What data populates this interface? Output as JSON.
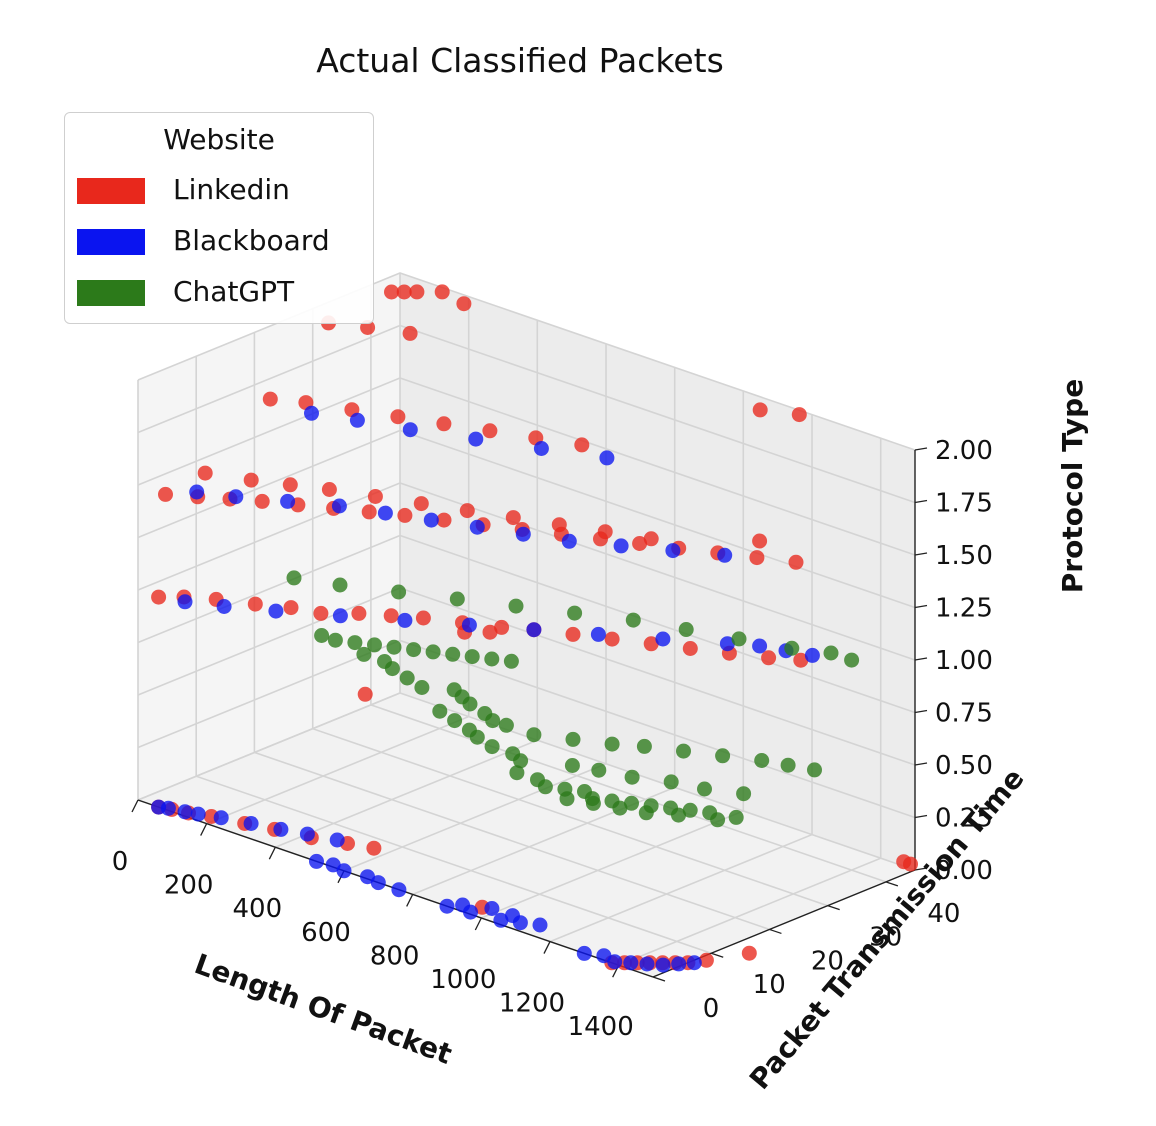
{
  "chart_data": {
    "type": "scatter",
    "projection": "3d",
    "title": "Actual Classified Packets",
    "xlabel": "Length Of Packet",
    "ylabel": "Packet Transmission Time",
    "zlabel": "Protocol Type",
    "xticks": [
      "0",
      "200",
      "400",
      "600",
      "800",
      "1000",
      "1200",
      "1400"
    ],
    "yticks": [
      "0",
      "10",
      "20",
      "30",
      "40"
    ],
    "zticks": [
      "0.00",
      "0.25",
      "0.50",
      "0.75",
      "1.00",
      "1.25",
      "1.50",
      "1.75",
      "2.00"
    ],
    "xlim": [
      0,
      1500
    ],
    "ylim": [
      0,
      45
    ],
    "zlim": [
      0,
      2
    ],
    "grid": true,
    "legend": {
      "title": "Website",
      "location": "upper-left",
      "entries": [
        "Linkedin",
        "Blackboard",
        "ChatGPT"
      ]
    },
    "series": [
      {
        "name": "Linkedin",
        "color": "#e8281c",
        "points": [
          [
            60,
            0,
            0
          ],
          [
            90,
            0.5,
            0
          ],
          [
            130,
            1,
            0
          ],
          [
            180,
            2,
            0
          ],
          [
            260,
            3,
            0
          ],
          [
            330,
            4,
            0
          ],
          [
            420,
            5,
            0
          ],
          [
            500,
            6.5,
            0
          ],
          [
            560,
            7.5,
            0
          ],
          [
            1380,
            0,
            0
          ],
          [
            1400,
            1,
            0
          ],
          [
            1420,
            2,
            0
          ],
          [
            1440,
            3,
            0
          ],
          [
            1460,
            4,
            0
          ],
          [
            1480,
            5,
            0
          ],
          [
            1500,
            6,
            0
          ],
          [
            1520,
            8,
            0
          ],
          [
            1560,
            13,
            0
          ],
          [
            1450,
            46,
            0
          ],
          [
            1470,
            46,
            0
          ],
          [
            960,
            2.5,
            0
          ],
          [
            60,
            0,
            1
          ],
          [
            100,
            2,
            1
          ],
          [
            160,
            4,
            1
          ],
          [
            240,
            6,
            1
          ],
          [
            310,
            8,
            1
          ],
          [
            380,
            9,
            1
          ],
          [
            440,
            12,
            1
          ],
          [
            500,
            14,
            1
          ],
          [
            560,
            16,
            1
          ],
          [
            640,
            18,
            1
          ],
          [
            720,
            20,
            1
          ],
          [
            780,
            22,
            1
          ],
          [
            860,
            24,
            1
          ],
          [
            940,
            26,
            1
          ],
          [
            1020,
            28,
            1
          ],
          [
            1100,
            30,
            1
          ],
          [
            1180,
            32,
            1
          ],
          [
            1260,
            34,
            1
          ],
          [
            1320,
            36,
            1
          ],
          [
            80,
            0,
            1.5
          ],
          [
            140,
            2,
            1.5
          ],
          [
            200,
            4,
            1.5
          ],
          [
            260,
            6,
            1.5
          ],
          [
            330,
            8,
            1.5
          ],
          [
            400,
            10,
            1.5
          ],
          [
            470,
            12,
            1.5
          ],
          [
            540,
            14,
            1.5
          ],
          [
            620,
            16,
            1.5
          ],
          [
            700,
            18,
            1.5
          ],
          [
            780,
            20,
            1.5
          ],
          [
            860,
            22,
            1.5
          ],
          [
            940,
            24,
            1.5
          ],
          [
            1020,
            26,
            1.5
          ],
          [
            1100,
            28,
            1.5
          ],
          [
            1180,
            30,
            1.5
          ],
          [
            1260,
            32,
            1.5
          ],
          [
            1340,
            34,
            1.5
          ],
          [
            60,
            8,
            1.5
          ],
          [
            160,
            10,
            1.5
          ],
          [
            240,
            12,
            1.5
          ],
          [
            320,
            14,
            1.5
          ],
          [
            420,
            16,
            1.5
          ],
          [
            520,
            18,
            1.5
          ],
          [
            620,
            20,
            1.5
          ],
          [
            720,
            22,
            1.5
          ],
          [
            820,
            24,
            1.5
          ],
          [
            920,
            26,
            1.5
          ],
          [
            1020,
            28,
            1.5
          ],
          [
            80,
            18,
            1.75
          ],
          [
            150,
            20,
            1.75
          ],
          [
            250,
            22,
            1.75
          ],
          [
            350,
            24,
            1.75
          ],
          [
            450,
            26,
            1.75
          ],
          [
            550,
            28,
            1.75
          ],
          [
            650,
            30,
            1.75
          ],
          [
            750,
            32,
            1.75
          ],
          [
            80,
            28,
            2
          ],
          [
            160,
            30,
            2
          ],
          [
            250,
            32,
            2
          ],
          [
            60,
            40,
            2
          ],
          [
            80,
            41,
            2
          ],
          [
            100,
            42,
            2
          ],
          [
            140,
            44,
            2
          ],
          [
            220,
            43,
            2
          ],
          [
            1100,
            42,
            2
          ],
          [
            1180,
            44,
            2
          ],
          [
            1200,
            36,
            1.5
          ],
          [
            680,
            16,
            1
          ],
          [
            720,
            18,
            1
          ],
          [
            560,
            6,
            0.75
          ]
        ]
      },
      {
        "name": "Blackboard",
        "color": "#0a14f0",
        "points": [
          [
            60,
            0,
            0
          ],
          [
            80,
            0.5,
            0
          ],
          [
            120,
            1,
            0
          ],
          [
            150,
            1.5,
            0
          ],
          [
            200,
            2.5,
            0
          ],
          [
            270,
            3.5,
            0
          ],
          [
            340,
            4.5,
            0
          ],
          [
            400,
            5.5,
            0
          ],
          [
            470,
            6.5,
            0
          ],
          [
            1380,
            0.5,
            0
          ],
          [
            1410,
            1.5,
            0
          ],
          [
            1440,
            2.5,
            0
          ],
          [
            1470,
            3.5,
            0
          ],
          [
            1490,
            5,
            0
          ],
          [
            1510,
            6.5,
            0
          ],
          [
            520,
            0,
            0
          ],
          [
            560,
            0.5,
            0
          ],
          [
            600,
            0,
            0
          ],
          [
            660,
            0.5,
            0
          ],
          [
            700,
            0,
            0
          ],
          [
            760,
            0,
            0
          ],
          [
            900,
            0,
            0
          ],
          [
            920,
            1.5,
            0
          ],
          [
            960,
            0.5,
            0
          ],
          [
            1040,
            1,
            0
          ],
          [
            980,
            3,
            0
          ],
          [
            1040,
            3,
            0
          ],
          [
            1080,
            2,
            0
          ],
          [
            1120,
            3,
            0
          ],
          [
            1300,
            0,
            0
          ],
          [
            1340,
            1,
            0
          ],
          [
            120,
            1,
            1
          ],
          [
            200,
            3,
            1
          ],
          [
            300,
            6,
            1
          ],
          [
            420,
            10,
            1
          ],
          [
            540,
            14,
            1
          ],
          [
            660,
            18,
            1
          ],
          [
            780,
            22,
            1
          ],
          [
            900,
            26,
            1
          ],
          [
            1020,
            30,
            1
          ],
          [
            1140,
            34,
            1
          ],
          [
            1200,
            36,
            1
          ],
          [
            1260,
            37,
            1
          ],
          [
            1320,
            38,
            1
          ],
          [
            120,
            3,
            1.5
          ],
          [
            200,
            5,
            1.5
          ],
          [
            300,
            8,
            1.5
          ],
          [
            400,
            11,
            1.5
          ],
          [
            500,
            13,
            1.5
          ],
          [
            600,
            15,
            1.5
          ],
          [
            700,
            17,
            1.5
          ],
          [
            800,
            19,
            1.5
          ],
          [
            900,
            21,
            1.5
          ],
          [
            1000,
            24,
            1.5
          ],
          [
            1100,
            27,
            1.5
          ],
          [
            1200,
            30,
            1.5
          ],
          [
            200,
            18,
            1.75
          ],
          [
            300,
            20,
            1.75
          ],
          [
            420,
            22,
            1.75
          ],
          [
            560,
            25,
            1.75
          ],
          [
            700,
            28,
            1.75
          ],
          [
            840,
            31,
            1.75
          ]
        ]
      },
      {
        "name": "ChatGPT",
        "color": "#2c7a1a",
        "points": [
          [
            60,
            28,
            0.5
          ],
          [
            100,
            28,
            0.5
          ],
          [
            140,
            29,
            0.5
          ],
          [
            180,
            30,
            0.5
          ],
          [
            220,
            31,
            0.5
          ],
          [
            260,
            32,
            0.5
          ],
          [
            300,
            33,
            0.5
          ],
          [
            340,
            34,
            0.5
          ],
          [
            380,
            35,
            0.5
          ],
          [
            420,
            36,
            0.5
          ],
          [
            460,
            37,
            0.5
          ],
          [
            200,
            27,
            0.5
          ],
          [
            260,
            27,
            0.5
          ],
          [
            300,
            26,
            0.5
          ],
          [
            360,
            25,
            0.5
          ],
          [
            420,
            24,
            0.5
          ],
          [
            480,
            26,
            0.5
          ],
          [
            520,
            25,
            0.5
          ],
          [
            560,
            24,
            0.5
          ],
          [
            620,
            23,
            0.5
          ],
          [
            660,
            22,
            0.5
          ],
          [
            700,
            22,
            0.5
          ],
          [
            540,
            20,
            0.5
          ],
          [
            600,
            19,
            0.5
          ],
          [
            660,
            18,
            0.5
          ],
          [
            700,
            17,
            0.5
          ],
          [
            760,
            16,
            0.5
          ],
          [
            820,
            16,
            0.5
          ],
          [
            860,
            15,
            0.5
          ],
          [
            780,
            22,
            0.5
          ],
          [
            860,
            24,
            0.5
          ],
          [
            940,
            26,
            0.5
          ],
          [
            1000,
            28,
            0.5
          ],
          [
            1080,
            30,
            0.5
          ],
          [
            1160,
            32,
            0.5
          ],
          [
            1240,
            34,
            0.5
          ],
          [
            1300,
            35,
            0.5
          ],
          [
            1360,
            36,
            0.5
          ],
          [
            900,
            12,
            0.5
          ],
          [
            960,
            12,
            0.5
          ],
          [
            1000,
            11,
            0.5
          ],
          [
            1040,
            12,
            0.5
          ],
          [
            1080,
            13,
            0.5
          ],
          [
            1120,
            12,
            0.5
          ],
          [
            1160,
            13,
            0.5
          ],
          [
            1200,
            14,
            0.5
          ],
          [
            1240,
            15,
            0.5
          ],
          [
            1280,
            16,
            0.5
          ],
          [
            1320,
            17,
            0.5
          ],
          [
            1360,
            18,
            0.5
          ],
          [
            1420,
            19,
            0.5
          ],
          [
            1080,
            10,
            0.5
          ],
          [
            1140,
            11,
            0.5
          ],
          [
            1200,
            12,
            0.5
          ],
          [
            1260,
            13,
            0.5
          ],
          [
            1320,
            15,
            0.5
          ],
          [
            1400,
            17,
            0.5
          ],
          [
            960,
            18,
            0.5
          ],
          [
            1020,
            19,
            0.5
          ],
          [
            1100,
            20,
            0.5
          ],
          [
            1180,
            22,
            0.5
          ],
          [
            1260,
            23,
            0.5
          ],
          [
            1340,
            25,
            0.5
          ],
          [
            200,
            15,
            1
          ],
          [
            300,
            17,
            1
          ],
          [
            420,
            20,
            1
          ],
          [
            540,
            23,
            1
          ],
          [
            660,
            26,
            1
          ],
          [
            780,
            29,
            1
          ],
          [
            900,
            32,
            1
          ],
          [
            1020,
            34,
            1
          ],
          [
            1140,
            36,
            1
          ],
          [
            1260,
            38,
            1
          ],
          [
            1340,
            40,
            1
          ],
          [
            1400,
            40,
            1
          ]
        ]
      }
    ]
  }
}
